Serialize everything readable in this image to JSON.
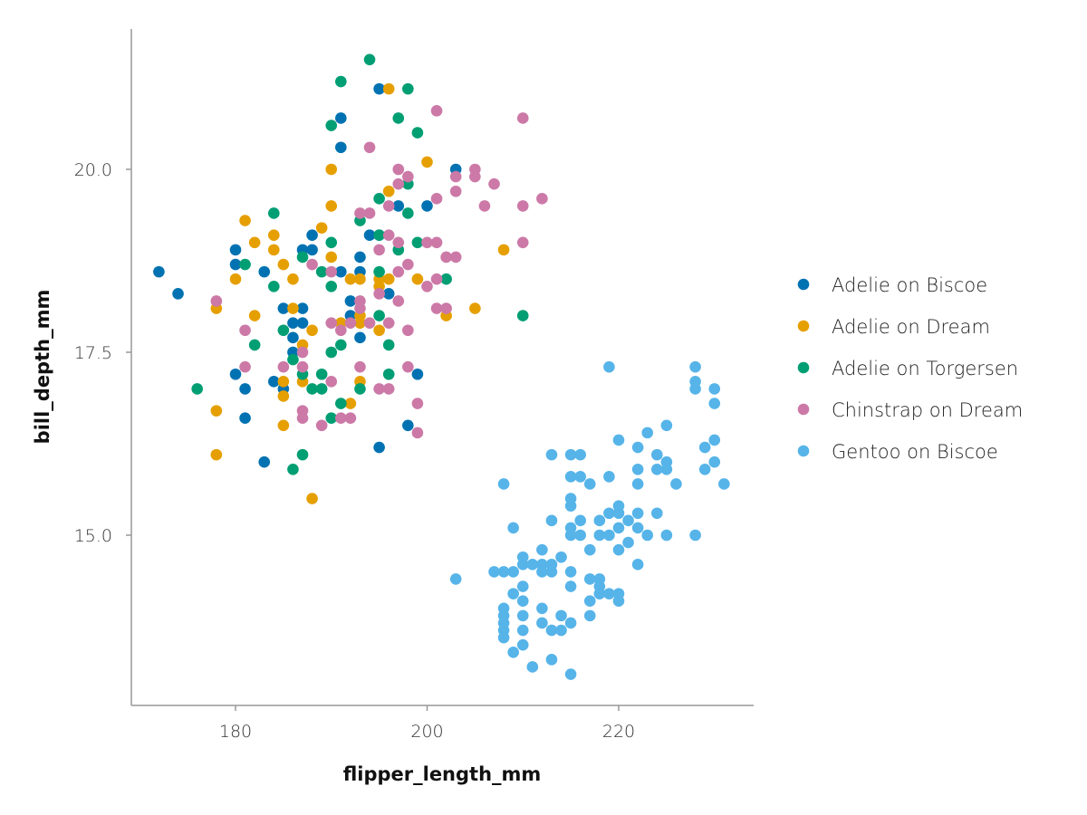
{
  "chart_data": {
    "type": "scatter",
    "title": "",
    "xlabel": "flipper_length_mm",
    "ylabel": "bill_depth_mm",
    "xlim": [
      169,
      234
    ],
    "ylim": [
      12.7,
      21.9
    ],
    "xticks": [
      180,
      200,
      220
    ],
    "xtick_labels": [
      "180",
      "200",
      "220"
    ],
    "yticks": [
      15.0,
      17.5,
      20.0
    ],
    "ytick_labels": [
      "15.0",
      "17.5",
      "20.0"
    ],
    "grid": false,
    "legend_position": "right",
    "series": [
      {
        "name": "Adelie on Biscoe",
        "color": "#0072B2",
        "points": [
          [
            172,
            18.6
          ],
          [
            174,
            18.3
          ],
          [
            180,
            18.9
          ],
          [
            180,
            18.7
          ],
          [
            180,
            17.2
          ],
          [
            181,
            17.0
          ],
          [
            181,
            16.6
          ],
          [
            183,
            18.6
          ],
          [
            183,
            16.0
          ],
          [
            184,
            17.1
          ],
          [
            185,
            18.1
          ],
          [
            185,
            17.0
          ],
          [
            186,
            17.9
          ],
          [
            186,
            17.7
          ],
          [
            186,
            17.5
          ],
          [
            187,
            18.9
          ],
          [
            187,
            18.1
          ],
          [
            187,
            17.9
          ],
          [
            188,
            19.1
          ],
          [
            188,
            18.9
          ],
          [
            191,
            18.6
          ],
          [
            191,
            20.3
          ],
          [
            191,
            20.7
          ],
          [
            192,
            18.2
          ],
          [
            192,
            18.0
          ],
          [
            193,
            18.8
          ],
          [
            193,
            17.7
          ],
          [
            193,
            18.6
          ],
          [
            194,
            19.1
          ],
          [
            195,
            21.1
          ],
          [
            195,
            16.2
          ],
          [
            195,
            19.1
          ],
          [
            196,
            18.3
          ],
          [
            197,
            19.5
          ],
          [
            198,
            16.5
          ],
          [
            199,
            17.2
          ],
          [
            200,
            19.5
          ],
          [
            203,
            20.0
          ]
        ]
      },
      {
        "name": "Adelie on Dream",
        "color": "#E69F00",
        "points": [
          [
            178,
            18.1
          ],
          [
            178,
            16.7
          ],
          [
            178,
            16.1
          ],
          [
            180,
            18.5
          ],
          [
            181,
            19.3
          ],
          [
            182,
            19.0
          ],
          [
            182,
            18.0
          ],
          [
            184,
            19.1
          ],
          [
            184,
            18.9
          ],
          [
            185,
            18.7
          ],
          [
            185,
            17.1
          ],
          [
            185,
            16.9
          ],
          [
            185,
            16.5
          ],
          [
            186,
            18.5
          ],
          [
            186,
            18.1
          ],
          [
            187,
            17.6
          ],
          [
            187,
            17.1
          ],
          [
            188,
            15.5
          ],
          [
            188,
            17.8
          ],
          [
            189,
            19.2
          ],
          [
            190,
            20.0
          ],
          [
            190,
            19.5
          ],
          [
            190,
            18.8
          ],
          [
            191,
            17.9
          ],
          [
            192,
            18.5
          ],
          [
            192,
            16.8
          ],
          [
            193,
            18.5
          ],
          [
            193,
            17.9
          ],
          [
            193,
            17.1
          ],
          [
            193,
            18.0
          ],
          [
            195,
            18.5
          ],
          [
            195,
            18.4
          ],
          [
            195,
            17.8
          ],
          [
            196,
            21.1
          ],
          [
            196,
            19.7
          ],
          [
            196,
            18.5
          ],
          [
            199,
            18.5
          ],
          [
            200,
            20.1
          ],
          [
            202,
            18.0
          ],
          [
            205,
            18.1
          ],
          [
            208,
            18.9
          ]
        ]
      },
      {
        "name": "Adelie on Torgersen",
        "color": "#009E73",
        "points": [
          [
            176,
            17.0
          ],
          [
            181,
            18.7
          ],
          [
            182,
            17.6
          ],
          [
            184,
            19.4
          ],
          [
            184,
            18.4
          ],
          [
            185,
            17.8
          ],
          [
            186,
            17.4
          ],
          [
            186,
            15.9
          ],
          [
            187,
            18.8
          ],
          [
            187,
            17.2
          ],
          [
            187,
            16.1
          ],
          [
            188,
            17.0
          ],
          [
            189,
            18.6
          ],
          [
            189,
            17.2
          ],
          [
            189,
            17.0
          ],
          [
            190,
            20.6
          ],
          [
            190,
            19.0
          ],
          [
            190,
            18.4
          ],
          [
            190,
            17.5
          ],
          [
            190,
            16.6
          ],
          [
            191,
            21.2
          ],
          [
            191,
            17.6
          ],
          [
            191,
            16.8
          ],
          [
            193,
            19.3
          ],
          [
            193,
            17.0
          ],
          [
            194,
            21.5
          ],
          [
            195,
            19.6
          ],
          [
            195,
            19.1
          ],
          [
            195,
            18.6
          ],
          [
            195,
            18.0
          ],
          [
            196,
            17.6
          ],
          [
            196,
            17.2
          ],
          [
            197,
            20.7
          ],
          [
            197,
            18.9
          ],
          [
            198,
            21.1
          ],
          [
            198,
            19.8
          ],
          [
            198,
            19.4
          ],
          [
            199,
            20.5
          ],
          [
            199,
            19.0
          ],
          [
            202,
            18.5
          ],
          [
            210,
            18.0
          ]
        ]
      },
      {
        "name": "Chinstrap on Dream",
        "color": "#CC79A7",
        "points": [
          [
            178,
            18.2
          ],
          [
            181,
            17.8
          ],
          [
            181,
            17.3
          ],
          [
            185,
            17.3
          ],
          [
            187,
            17.5
          ],
          [
            187,
            17.3
          ],
          [
            187,
            16.7
          ],
          [
            187,
            16.6
          ],
          [
            188,
            18.7
          ],
          [
            189,
            16.5
          ],
          [
            190,
            18.6
          ],
          [
            190,
            17.9
          ],
          [
            190,
            17.1
          ],
          [
            191,
            17.8
          ],
          [
            191,
            16.6
          ],
          [
            192,
            17.9
          ],
          [
            192,
            16.6
          ],
          [
            193,
            19.4
          ],
          [
            193,
            18.2
          ],
          [
            193,
            18.1
          ],
          [
            193,
            17.3
          ],
          [
            194,
            20.3
          ],
          [
            194,
            19.4
          ],
          [
            194,
            17.9
          ],
          [
            195,
            18.9
          ],
          [
            195,
            18.3
          ],
          [
            195,
            17.0
          ],
          [
            196,
            19.5
          ],
          [
            196,
            19.1
          ],
          [
            196,
            17.9
          ],
          [
            196,
            17.0
          ],
          [
            197,
            20.0
          ],
          [
            197,
            19.8
          ],
          [
            197,
            19.0
          ],
          [
            197,
            18.6
          ],
          [
            197,
            18.2
          ],
          [
            198,
            19.9
          ],
          [
            198,
            18.7
          ],
          [
            198,
            17.8
          ],
          [
            198,
            17.3
          ],
          [
            199,
            16.8
          ],
          [
            199,
            16.4
          ],
          [
            200,
            19.0
          ],
          [
            200,
            18.4
          ],
          [
            201,
            20.8
          ],
          [
            201,
            19.6
          ],
          [
            201,
            19.0
          ],
          [
            201,
            18.5
          ],
          [
            201,
            18.1
          ],
          [
            202,
            18.8
          ],
          [
            202,
            18.1
          ],
          [
            203,
            19.9
          ],
          [
            203,
            19.7
          ],
          [
            203,
            18.8
          ],
          [
            205,
            20.0
          ],
          [
            205,
            19.9
          ],
          [
            206,
            19.5
          ],
          [
            207,
            19.8
          ],
          [
            210,
            20.7
          ],
          [
            210,
            19.5
          ],
          [
            210,
            19.0
          ],
          [
            212,
            19.6
          ]
        ]
      },
      {
        "name": "Gentoo on Biscoe",
        "color": "#56B4E9",
        "points": [
          [
            203,
            14.4
          ],
          [
            207,
            14.5
          ],
          [
            208,
            15.7
          ],
          [
            208,
            14.5
          ],
          [
            208,
            14.0
          ],
          [
            208,
            13.9
          ],
          [
            208,
            13.8
          ],
          [
            208,
            13.7
          ],
          [
            208,
            13.6
          ],
          [
            209,
            15.1
          ],
          [
            209,
            14.5
          ],
          [
            209,
            14.2
          ],
          [
            209,
            13.4
          ],
          [
            210,
            14.7
          ],
          [
            210,
            14.6
          ],
          [
            210,
            14.3
          ],
          [
            210,
            14.1
          ],
          [
            210,
            13.9
          ],
          [
            210,
            13.7
          ],
          [
            210,
            13.5
          ],
          [
            211,
            14.6
          ],
          [
            211,
            13.2
          ],
          [
            212,
            14.8
          ],
          [
            212,
            14.6
          ],
          [
            212,
            14.5
          ],
          [
            212,
            14.0
          ],
          [
            212,
            13.8
          ],
          [
            213,
            16.1
          ],
          [
            213,
            15.2
          ],
          [
            213,
            14.6
          ],
          [
            213,
            14.5
          ],
          [
            213,
            13.7
          ],
          [
            213,
            13.3
          ],
          [
            214,
            14.7
          ],
          [
            214,
            13.9
          ],
          [
            214,
            13.7
          ],
          [
            215,
            16.1
          ],
          [
            215,
            15.8
          ],
          [
            215,
            15.5
          ],
          [
            215,
            15.4
          ],
          [
            215,
            15.1
          ],
          [
            215,
            15.0
          ],
          [
            215,
            14.5
          ],
          [
            215,
            14.3
          ],
          [
            215,
            13.8
          ],
          [
            215,
            13.1
          ],
          [
            216,
            16.1
          ],
          [
            216,
            15.8
          ],
          [
            216,
            15.2
          ],
          [
            216,
            15.0
          ],
          [
            217,
            15.7
          ],
          [
            217,
            14.8
          ],
          [
            217,
            14.4
          ],
          [
            217,
            14.1
          ],
          [
            217,
            13.9
          ],
          [
            218,
            15.2
          ],
          [
            218,
            15.0
          ],
          [
            218,
            14.4
          ],
          [
            218,
            14.3
          ],
          [
            218,
            14.2
          ],
          [
            219,
            17.3
          ],
          [
            219,
            15.8
          ],
          [
            219,
            15.3
          ],
          [
            219,
            15.0
          ],
          [
            219,
            14.2
          ],
          [
            220,
            16.3
          ],
          [
            220,
            15.4
          ],
          [
            220,
            15.3
          ],
          [
            220,
            15.1
          ],
          [
            220,
            14.8
          ],
          [
            220,
            14.2
          ],
          [
            220,
            14.1
          ],
          [
            221,
            15.2
          ],
          [
            221,
            14.9
          ],
          [
            222,
            16.2
          ],
          [
            222,
            15.9
          ],
          [
            222,
            15.7
          ],
          [
            222,
            15.3
          ],
          [
            222,
            15.1
          ],
          [
            222,
            14.6
          ],
          [
            223,
            16.4
          ],
          [
            223,
            15.0
          ],
          [
            224,
            16.1
          ],
          [
            224,
            15.9
          ],
          [
            224,
            15.3
          ],
          [
            225,
            16.5
          ],
          [
            225,
            16.0
          ],
          [
            225,
            15.9
          ],
          [
            225,
            15.0
          ],
          [
            226,
            15.7
          ],
          [
            228,
            17.3
          ],
          [
            228,
            17.1
          ],
          [
            228,
            17.0
          ],
          [
            228,
            15.0
          ],
          [
            229,
            16.2
          ],
          [
            229,
            15.9
          ],
          [
            230,
            17.0
          ],
          [
            230,
            16.8
          ],
          [
            230,
            16.3
          ],
          [
            230,
            16.0
          ],
          [
            231,
            15.7
          ]
        ]
      }
    ]
  }
}
